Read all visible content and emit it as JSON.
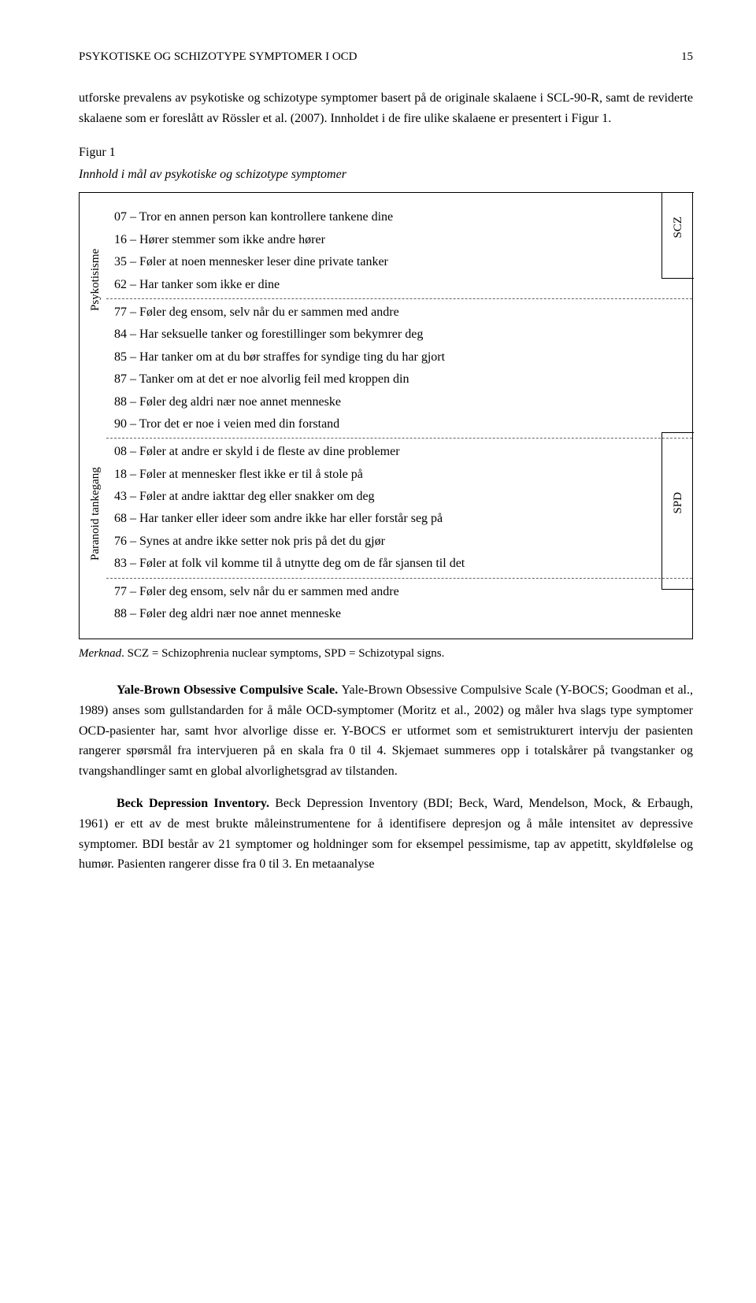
{
  "header": {
    "running_head": "PSYKOTISKE OG SCHIZOTYPE SYMPTOMER I OCD",
    "page_number": "15"
  },
  "intro_para": "utforske prevalens av psykotiske og schizotype symptomer basert på de originale skalaene i SCL-90-R, samt de reviderte skalaene som er foreslått av Rössler et al. (2007). Innholdet i de fire ulike skalaene er presentert i Figur 1.",
  "figure": {
    "label": "Figur 1",
    "caption": "Innhold i mål av psykotiske og schizotype symptomer",
    "left_labels": {
      "psyk": "Psykotisisme",
      "para": "Paranoid tankegang"
    },
    "right_labels": {
      "scz": "SCZ",
      "spd": "SPD"
    },
    "block1": [
      "07 – Tror en annen person kan kontrollere tankene dine",
      "16 – Hører stemmer som ikke andre hører",
      "35 – Føler at noen mennesker leser dine private tanker",
      "62 – Har tanker som ikke er dine"
    ],
    "block2": [
      "77 – Føler deg ensom, selv når du er sammen med andre",
      "84 – Har seksuelle tanker og forestillinger som bekymrer deg",
      "85 – Har tanker om at du bør straffes for syndige ting du har gjort",
      "87 – Tanker om at det er noe alvorlig feil med kroppen din",
      "88 – Føler deg aldri nær noe annet menneske",
      "90 – Tror det er noe i veien med din forstand"
    ],
    "block3": [
      "08 – Føler at andre er skyld i de fleste av dine problemer",
      "18 – Føler at mennesker flest ikke er til å stole på",
      "43 – Føler at andre iakttar deg eller snakker om deg",
      "68 – Har tanker eller ideer som andre ikke har eller forstår seg på",
      "76 – Synes at andre ikke setter nok pris på det du gjør",
      "83 – Føler at folk vil komme til å utnytte deg om de får sjansen til det"
    ],
    "block4": [
      "77 – Føler deg ensom, selv når du er sammen med andre",
      "88 – Føler deg aldri nær noe annet menneske"
    ]
  },
  "merknad": {
    "label": "Merknad",
    "text": ". SCZ = Schizophrenia nuclear symptoms, SPD = Schizotypal signs."
  },
  "ybocs": {
    "title": "Yale-Brown Obsessive Compulsive Scale. ",
    "text": "Yale-Brown Obsessive Compulsive Scale (Y-BOCS; Goodman et al., 1989) anses som gullstandarden for å måle OCD-symptomer (Moritz et al., 2002) og måler hva slags type symptomer OCD-pasienter har, samt hvor alvorlige disse er. Y-BOCS er utformet som et semistrukturert intervju der pasienten rangerer spørsmål fra intervjueren på en skala fra 0 til 4. Skjemaet summeres opp i totalskårer på tvangstanker og tvangshandlinger samt en global alvorlighetsgrad av tilstanden."
  },
  "bdi": {
    "title": "Beck Depression Inventory. ",
    "text": "Beck Depression Inventory (BDI; Beck, Ward, Mendelson, Mock, & Erbaugh, 1961) er ett av de mest brukte måleinstrumentene for å identifisere depresjon og å måle intensitet av depressive symptomer. BDI består av 21 symptomer og holdninger som for eksempel pessimisme, tap av appetitt, skyldfølelse og humør. Pasienten rangerer disse fra 0 til 3. En metaanalyse"
  }
}
